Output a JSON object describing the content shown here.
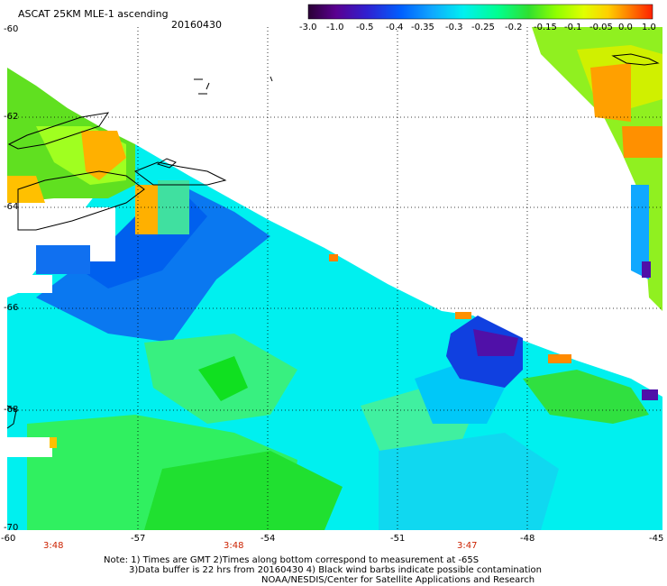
{
  "title": "ASCAT 25KM MLE-1 ascending",
  "date": "20160430",
  "colorbar": {
    "labels": [
      "-3.0",
      "-1.0",
      "-0.5",
      "-0.4",
      "-0.35",
      "-0.3",
      "-0.25",
      "-0.2",
      "-0.15",
      "-0.1",
      "-0.05",
      "0.0",
      "1.0"
    ],
    "colors": [
      "#3d0050",
      "#6a00a8",
      "#2020e0",
      "#0050ff",
      "#1aa0ff",
      "#00e8e8",
      "#00ffa0",
      "#20e020",
      "#80ff00",
      "#d0ff00",
      "#ffff00",
      "#ffa000",
      "#ff3000"
    ]
  },
  "map": {
    "lon_ticks": [
      "-60",
      "-57",
      "-54",
      "-51",
      "-48",
      "-45"
    ],
    "lat_ticks": [
      "-60",
      "-62",
      "-64",
      "-66",
      "-68",
      "-70"
    ],
    "times": [
      "3:48",
      "3:48",
      "3:47"
    ]
  },
  "notes": {
    "line1": "Note: 1) Times are GMT 2)Times along bottom correspond to measurement at -65S",
    "line2": "3)Data buffer is 22 hrs from 20160430 4) Black wind barbs indicate possible contamination",
    "line3": "NOAA/NESDIS/Center for Satellite Applications and Research"
  }
}
